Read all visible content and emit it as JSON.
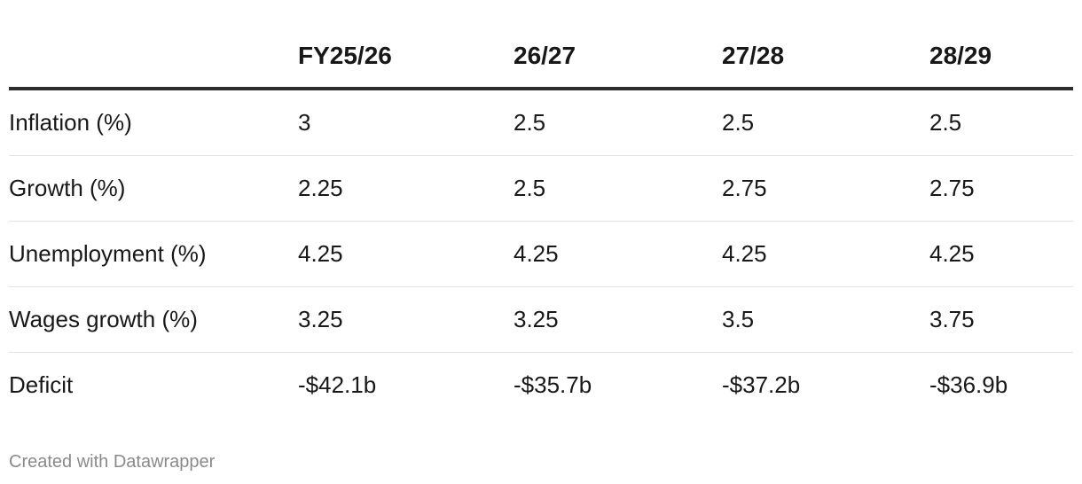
{
  "chart_data": {
    "type": "table",
    "columns": [
      "",
      "FY25/26",
      "26/27",
      "27/28",
      "28/29"
    ],
    "rows": [
      {
        "label": "Inflation (%)",
        "values": [
          "3",
          "2.5",
          "2.5",
          "2.5"
        ]
      },
      {
        "label": "Growth (%)",
        "values": [
          "2.25",
          "2.5",
          "2.75",
          "2.75"
        ]
      },
      {
        "label": "Unemployment (%)",
        "values": [
          "4.25",
          "4.25",
          "4.25",
          "4.25"
        ]
      },
      {
        "label": "Wages growth (%)",
        "values": [
          "3.25",
          "3.25",
          "3.5",
          "3.75"
        ]
      },
      {
        "label": "Deficit",
        "values": [
          "-$42.1b",
          "-$35.7b",
          "-$37.2b",
          "-$36.9b"
        ]
      }
    ]
  },
  "footer": {
    "credit": "Created with Datawrapper"
  }
}
